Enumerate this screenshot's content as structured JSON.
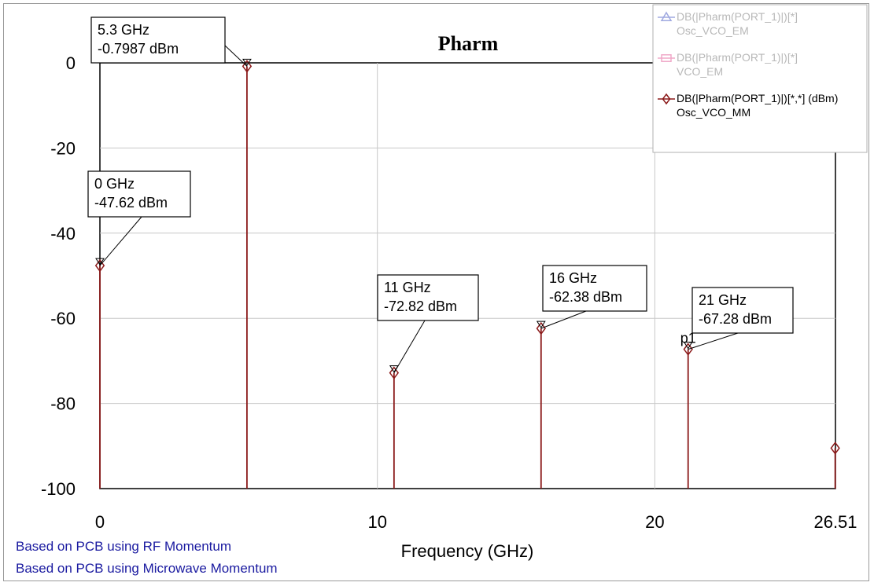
{
  "chart_data": {
    "type": "line",
    "title": "Pharm",
    "xlabel": "Frequency (GHz)",
    "ylabel": "",
    "xlim": [
      0,
      26.51
    ],
    "ylim": [
      -100,
      0
    ],
    "x_ticks": [
      "0",
      "10",
      "20",
      "26.51"
    ],
    "x_tick_values": [
      0,
      10,
      20,
      26.51
    ],
    "y_ticks": [
      "0",
      "-20",
      "-40",
      "-60",
      "-80",
      "-100"
    ],
    "y_tick_values": [
      0,
      -20,
      -40,
      -60,
      -80,
      -100
    ],
    "grid": true,
    "legend_position": "top-right",
    "series": [
      {
        "name": "DB(|Pharm(PORT_1)|)[*]",
        "sub": "Osc_VCO_EM",
        "color": "#9fa8e0",
        "symbol": "triangle",
        "x": [],
        "y": []
      },
      {
        "name": "DB(|Pharm(PORT_1)|)[*]",
        "sub": "VCO_EM",
        "color": "#f0a8c8",
        "symbol": "square",
        "x": [],
        "y": []
      },
      {
        "name": "DB(|Pharm(PORT_1)|)[*,*] (dBm)",
        "sub": "Osc_VCO_MM",
        "color": "#8b1a1a",
        "symbol": "diamond",
        "x": [
          0,
          5.3,
          10.6,
          15.9,
          21.2,
          26.5
        ],
        "y": [
          -47.62,
          -0.7987,
          -72.82,
          -62.38,
          -67.28,
          -90.5
        ]
      }
    ],
    "markers": [
      {
        "lines": [
          "5.3 GHz",
          "-0.7987 dBm"
        ],
        "x": 5.3,
        "y": -0.7987
      },
      {
        "lines": [
          "0 GHz",
          "-47.62 dBm"
        ],
        "x": 0,
        "y": -47.62
      },
      {
        "lines": [
          "11 GHz",
          "-72.82 dBm"
        ],
        "x": 10.6,
        "y": -72.82
      },
      {
        "lines": [
          "16 GHz",
          "-62.38 dBm"
        ],
        "x": 15.9,
        "y": -62.38
      },
      {
        "lines": [
          "21 GHz",
          "-67.28 dBm"
        ],
        "x": 21.2,
        "y": -67.28,
        "tag": "p1"
      }
    ],
    "notes": [
      "Based on PCB using RF Momentum",
      "Based on PCB using Microwave Momentum"
    ]
  }
}
